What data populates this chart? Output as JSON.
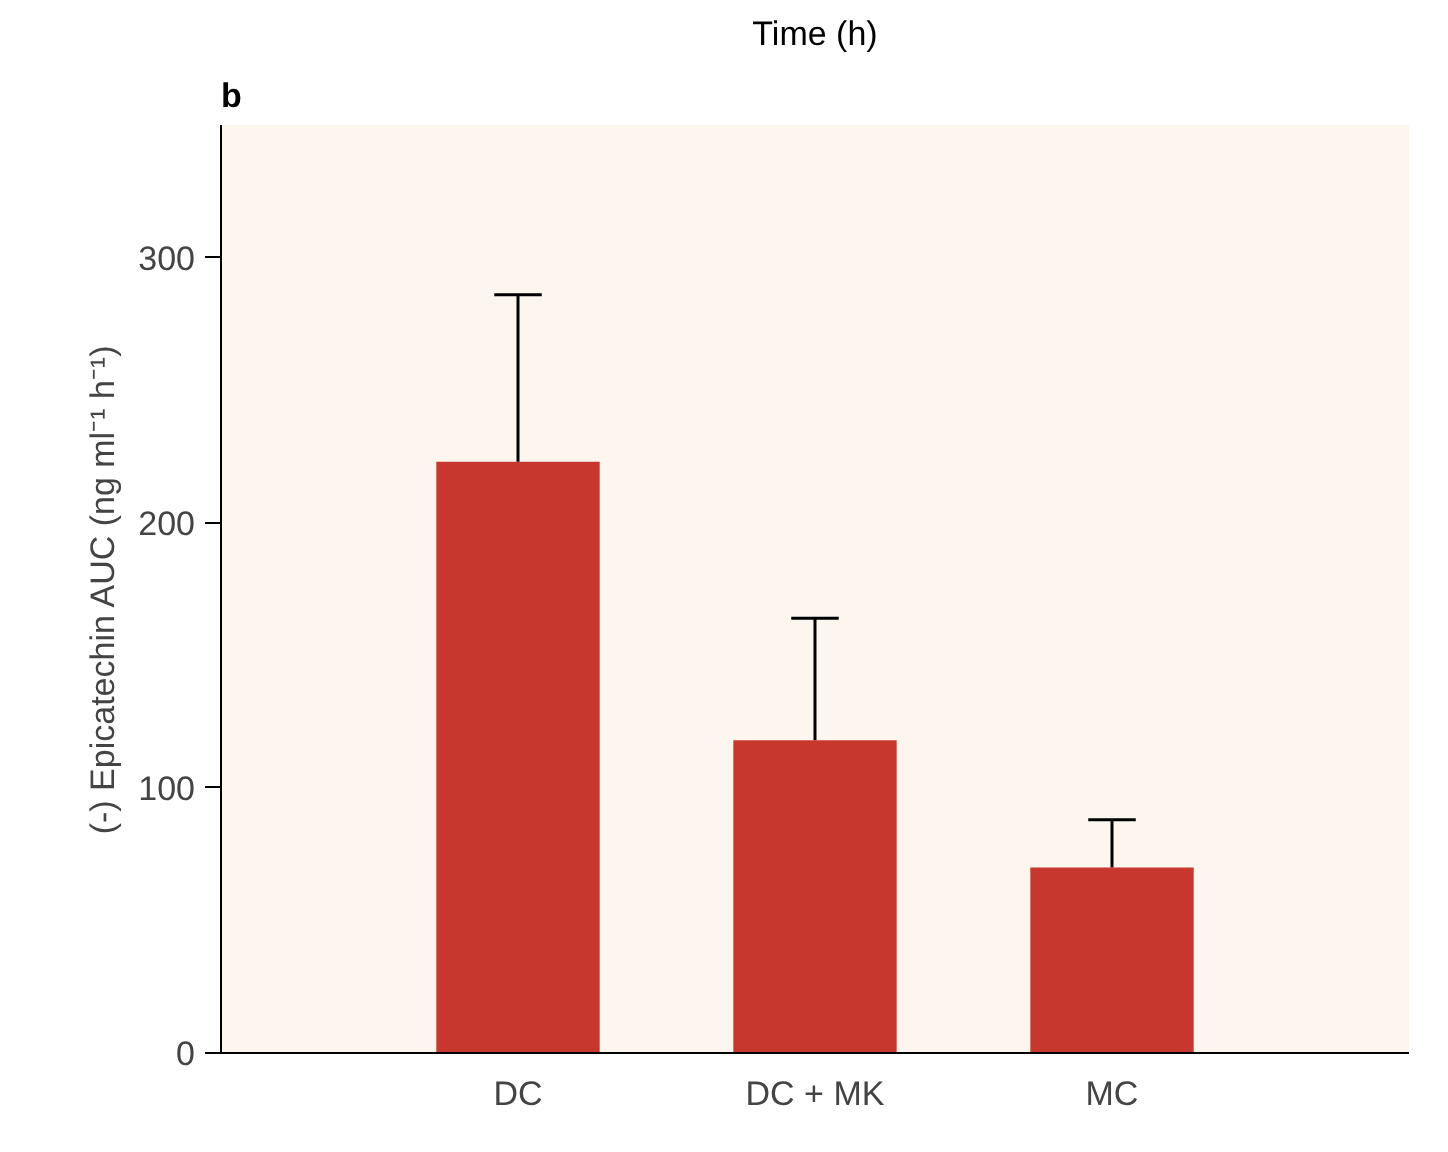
{
  "chart_data": {
    "type": "bar",
    "ylabel": "(-) Epicatechin AUC (ng ml⁻¹ h⁻¹)",
    "annotations": [
      "b",
      "Time (h)"
    ],
    "categories": [
      "DC",
      "DC + MK",
      "MC"
    ],
    "values": [
      223,
      118,
      70
    ],
    "errors": [
      [
        223,
        286
      ],
      [
        118,
        164
      ],
      [
        70,
        88
      ]
    ],
    "color": "#c8372d",
    "ylim": [
      0,
      350
    ],
    "yticks": [
      0,
      100,
      200,
      300
    ],
    "grid": false
  }
}
